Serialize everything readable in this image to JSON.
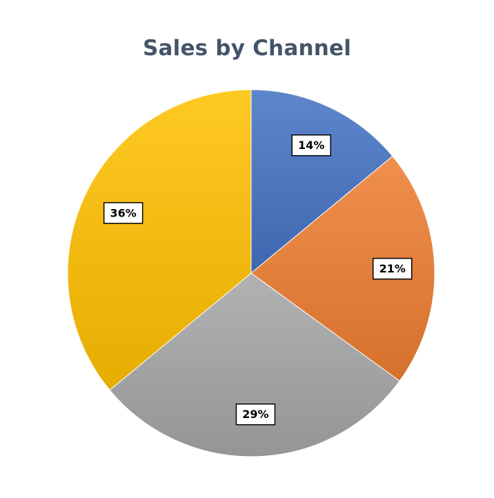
{
  "chart_data": {
    "type": "pie",
    "title": "Sales by Channel",
    "slices": [
      {
        "value": 14,
        "label": "14%",
        "color": "#4472c4"
      },
      {
        "value": 21,
        "label": "21%",
        "color": "#ed7d31"
      },
      {
        "value": 29,
        "label": "29%",
        "color": "#a5a5a5"
      },
      {
        "value": 36,
        "label": "36%",
        "color": "#ffc000"
      }
    ],
    "start_angle_deg": 0,
    "direction": "clockwise",
    "legend": "none"
  }
}
